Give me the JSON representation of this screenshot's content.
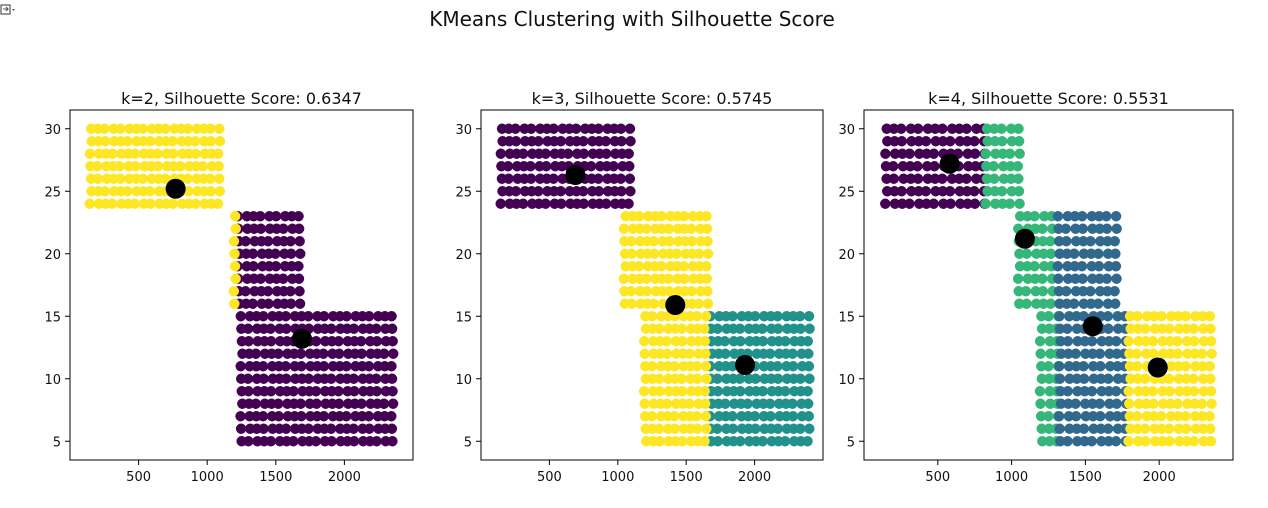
{
  "figure": {
    "suptitle": "KMeans Clustering with Silhouette Score"
  },
  "colors": {
    "viridis_2": [
      "#440154",
      "#fde725"
    ],
    "viridis_3": [
      "#440154",
      "#21918c",
      "#fde725"
    ],
    "viridis_4": [
      "#440154",
      "#31688e",
      "#35b779",
      "#fde725"
    ],
    "centroid": "#000000"
  },
  "chart_data": [
    {
      "type": "scatter",
      "title": "k=2, Silhouette Score: 0.6347",
      "xlim": [
        0,
        2500
      ],
      "ylim": [
        3.5,
        31.5
      ],
      "xticks": [
        500,
        1000,
        1500,
        2000
      ],
      "yticks": [
        5,
        10,
        15,
        20,
        25,
        30
      ],
      "grid": false,
      "bands": [
        {
          "y0": 24,
          "y1": 30,
          "x0": 150,
          "x1": 1100,
          "cluster": 1
        },
        {
          "y0": 16,
          "y1": 23,
          "x0": 1230,
          "x1": 1720,
          "cluster": 0
        },
        {
          "y0": 16,
          "y1": 23,
          "x0": 1200,
          "x1": 1230,
          "cluster": 1
        },
        {
          "y0": 5,
          "y1": 15,
          "x0": 1250,
          "x1": 2400,
          "cluster": 0
        }
      ],
      "centroids": [
        {
          "x": 770,
          "y": 25.2
        },
        {
          "x": 1690,
          "y": 13.2
        }
      ]
    },
    {
      "type": "scatter",
      "title": "k=3, Silhouette Score: 0.5745",
      "xlim": [
        0,
        2500
      ],
      "ylim": [
        3.5,
        31.5
      ],
      "xticks": [
        500,
        1000,
        1500,
        2000
      ],
      "yticks": [
        5,
        10,
        15,
        20,
        25,
        30
      ],
      "grid": false,
      "bands": [
        {
          "y0": 24,
          "y1": 30,
          "x0": 150,
          "x1": 1100,
          "cluster": 0
        },
        {
          "y0": 16,
          "y1": 23,
          "x0": 1050,
          "x1": 1680,
          "cluster": 2
        },
        {
          "y0": 5,
          "y1": 15,
          "x0": 1680,
          "x1": 2400,
          "cluster": 1
        },
        {
          "y0": 5,
          "y1": 15,
          "x0": 1200,
          "x1": 1680,
          "cluster": 2
        }
      ],
      "centroids": [
        {
          "x": 690,
          "y": 26.3
        },
        {
          "x": 1420,
          "y": 15.9
        },
        {
          "x": 1930,
          "y": 11.1
        }
      ]
    },
    {
      "type": "scatter",
      "title": "k=4, Silhouette Score: 0.5531",
      "xlim": [
        0,
        2500
      ],
      "ylim": [
        3.5,
        31.5
      ],
      "xticks": [
        500,
        1000,
        1500,
        2000
      ],
      "yticks": [
        5,
        10,
        15,
        20,
        25,
        30
      ],
      "grid": false,
      "bands": [
        {
          "y0": 24,
          "y1": 30,
          "x0": 150,
          "x1": 830,
          "cluster": 0
        },
        {
          "y0": 24,
          "y1": 30,
          "x0": 830,
          "x1": 1100,
          "cluster": 2
        },
        {
          "y0": 16,
          "y1": 23,
          "x0": 1050,
          "x1": 1320,
          "cluster": 2
        },
        {
          "y0": 16,
          "y1": 23,
          "x0": 1320,
          "x1": 1720,
          "cluster": 1
        },
        {
          "y0": 5,
          "y1": 15,
          "x0": 1200,
          "x1": 1330,
          "cluster": 2
        },
        {
          "y0": 5,
          "y1": 15,
          "x0": 1330,
          "x1": 1800,
          "cluster": 1
        },
        {
          "y0": 5,
          "y1": 15,
          "x0": 1800,
          "x1": 2400,
          "cluster": 3
        }
      ],
      "centroids": [
        {
          "x": 580,
          "y": 27.2
        },
        {
          "x": 1090,
          "y": 21.2
        },
        {
          "x": 1550,
          "y": 14.2
        },
        {
          "x": 1990,
          "y": 10.9
        }
      ]
    }
  ]
}
